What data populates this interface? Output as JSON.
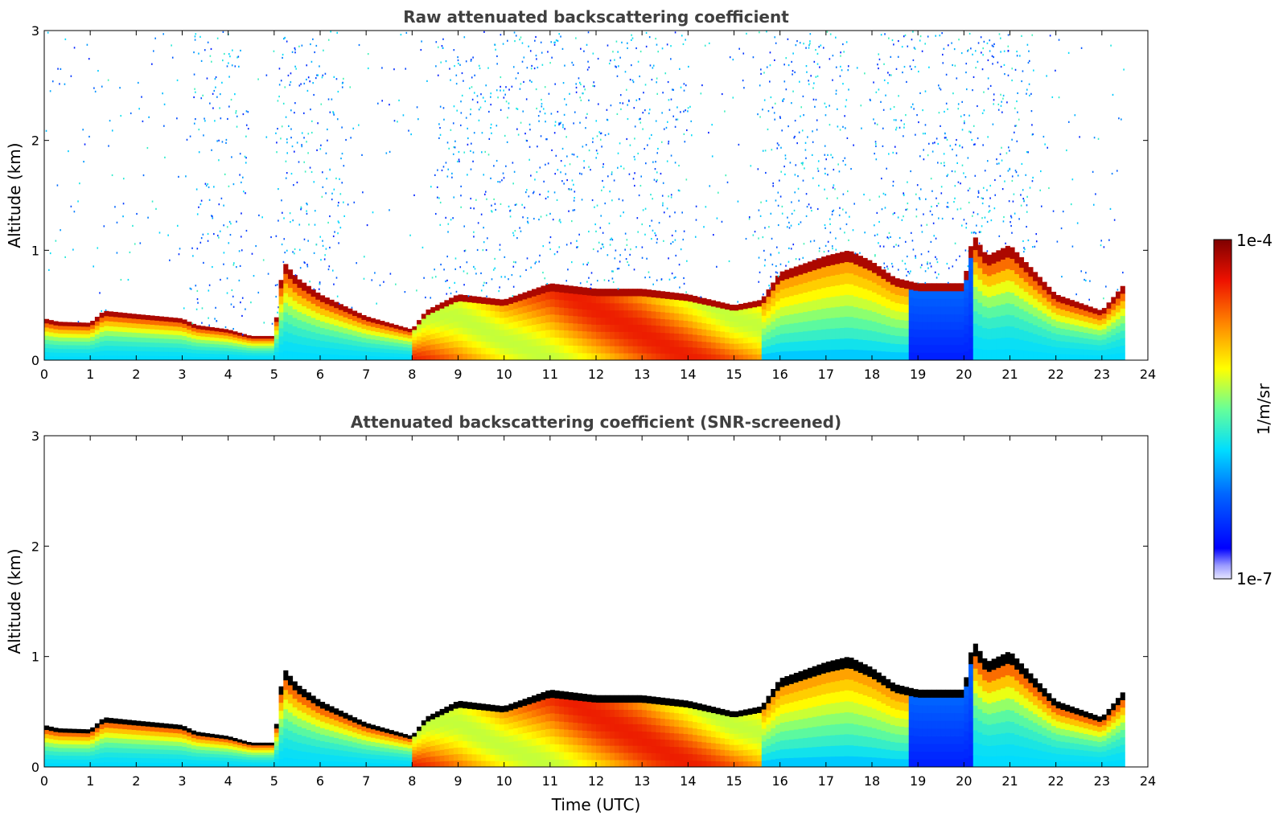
{
  "chart_data": [
    {
      "type": "heatmap",
      "title": "Raw attenuated backscattering coefficient",
      "xlabel": "",
      "ylabel": "Altitude (km)",
      "xlim": [
        0,
        24
      ],
      "ylim": [
        0,
        3
      ],
      "x_ticks": [
        "0",
        "1",
        "2",
        "3",
        "4",
        "5",
        "6",
        "7",
        "8",
        "9",
        "10",
        "11",
        "12",
        "13",
        "14",
        "15",
        "16",
        "17",
        "18",
        "19",
        "20",
        "21",
        "22",
        "23",
        "24"
      ],
      "y_ticks": [
        "0",
        "1",
        "2",
        "3"
      ],
      "x_tick_values": [
        0,
        1,
        2,
        3,
        4,
        5,
        6,
        7,
        8,
        9,
        10,
        11,
        12,
        13,
        14,
        15,
        16,
        17,
        18,
        19,
        20,
        21,
        22,
        23,
        24
      ],
      "y_tick_values": [
        0,
        1,
        2,
        3
      ],
      "layer_top_km": {
        "time_utc": [
          0,
          0.3,
          1.0,
          1.3,
          2.0,
          3.0,
          3.3,
          4.0,
          4.5,
          5.0,
          5.2,
          5.5,
          6.0,
          7.0,
          8.0,
          8.3,
          9.0,
          10.0,
          11.0,
          12.0,
          13.0,
          14.0,
          15.0,
          15.6,
          16.0,
          17.0,
          17.5,
          18.0,
          18.5,
          19.0,
          20.0,
          20.2,
          20.5,
          21.0,
          22.0,
          23.0,
          23.5
        ],
        "value": [
          0.38,
          0.35,
          0.34,
          0.45,
          0.42,
          0.38,
          0.32,
          0.28,
          0.22,
          0.22,
          0.9,
          0.75,
          0.6,
          0.4,
          0.28,
          0.45,
          0.6,
          0.55,
          0.7,
          0.65,
          0.65,
          0.6,
          0.5,
          0.55,
          0.8,
          0.95,
          1.0,
          0.9,
          0.75,
          0.7,
          0.7,
          1.15,
          0.95,
          1.05,
          0.6,
          0.45,
          0.7
        ]
      },
      "colorbar": {
        "min_label": "1e-7",
        "max_label": "1e-4",
        "label": "1/m/sr",
        "scale": "log"
      }
    },
    {
      "type": "heatmap",
      "title": "Attenuated backscattering coefficient (SNR-screened)",
      "xlabel": "Time (UTC)",
      "ylabel": "Altitude (km)",
      "xlim": [
        0,
        24
      ],
      "ylim": [
        0,
        3
      ],
      "x_ticks": [
        "0",
        "1",
        "2",
        "3",
        "4",
        "5",
        "6",
        "7",
        "8",
        "9",
        "10",
        "11",
        "12",
        "13",
        "14",
        "15",
        "16",
        "17",
        "18",
        "19",
        "20",
        "21",
        "22",
        "23",
        "24"
      ],
      "y_ticks": [
        "0",
        "1",
        "2",
        "3"
      ],
      "x_tick_values": [
        0,
        1,
        2,
        3,
        4,
        5,
        6,
        7,
        8,
        9,
        10,
        11,
        12,
        13,
        14,
        15,
        16,
        17,
        18,
        19,
        20,
        21,
        22,
        23,
        24
      ],
      "y_tick_values": [
        0,
        1,
        2,
        3
      ],
      "layer_top_km": {
        "time_utc": [
          0,
          0.3,
          1.0,
          1.3,
          2.0,
          3.0,
          3.3,
          4.0,
          4.5,
          5.0,
          5.2,
          5.5,
          6.0,
          7.0,
          8.0,
          8.3,
          9.0,
          10.0,
          11.0,
          12.0,
          13.0,
          14.0,
          15.0,
          15.6,
          16.0,
          17.0,
          17.5,
          18.0,
          18.5,
          19.0,
          20.0,
          20.2,
          20.5,
          21.0,
          22.0,
          23.0,
          23.5
        ],
        "value": [
          0.38,
          0.35,
          0.34,
          0.45,
          0.42,
          0.38,
          0.32,
          0.28,
          0.22,
          0.22,
          0.9,
          0.75,
          0.6,
          0.4,
          0.28,
          0.45,
          0.6,
          0.55,
          0.7,
          0.65,
          0.65,
          0.6,
          0.5,
          0.55,
          0.8,
          0.95,
          1.0,
          0.9,
          0.75,
          0.7,
          0.7,
          1.15,
          0.95,
          1.05,
          0.6,
          0.45,
          0.7
        ]
      },
      "colorbar": {
        "min_label": "1e-7",
        "max_label": "1e-4",
        "label": "1/m/sr",
        "scale": "log"
      }
    }
  ],
  "colorbar": {
    "max_label": "1e-4",
    "min_label": "1e-7",
    "label": "1/m/sr"
  },
  "colors": {
    "title": "#404040",
    "axis": "#000000",
    "low": "#0000ff",
    "mid": "#ffff00",
    "high": "#7f0000"
  }
}
